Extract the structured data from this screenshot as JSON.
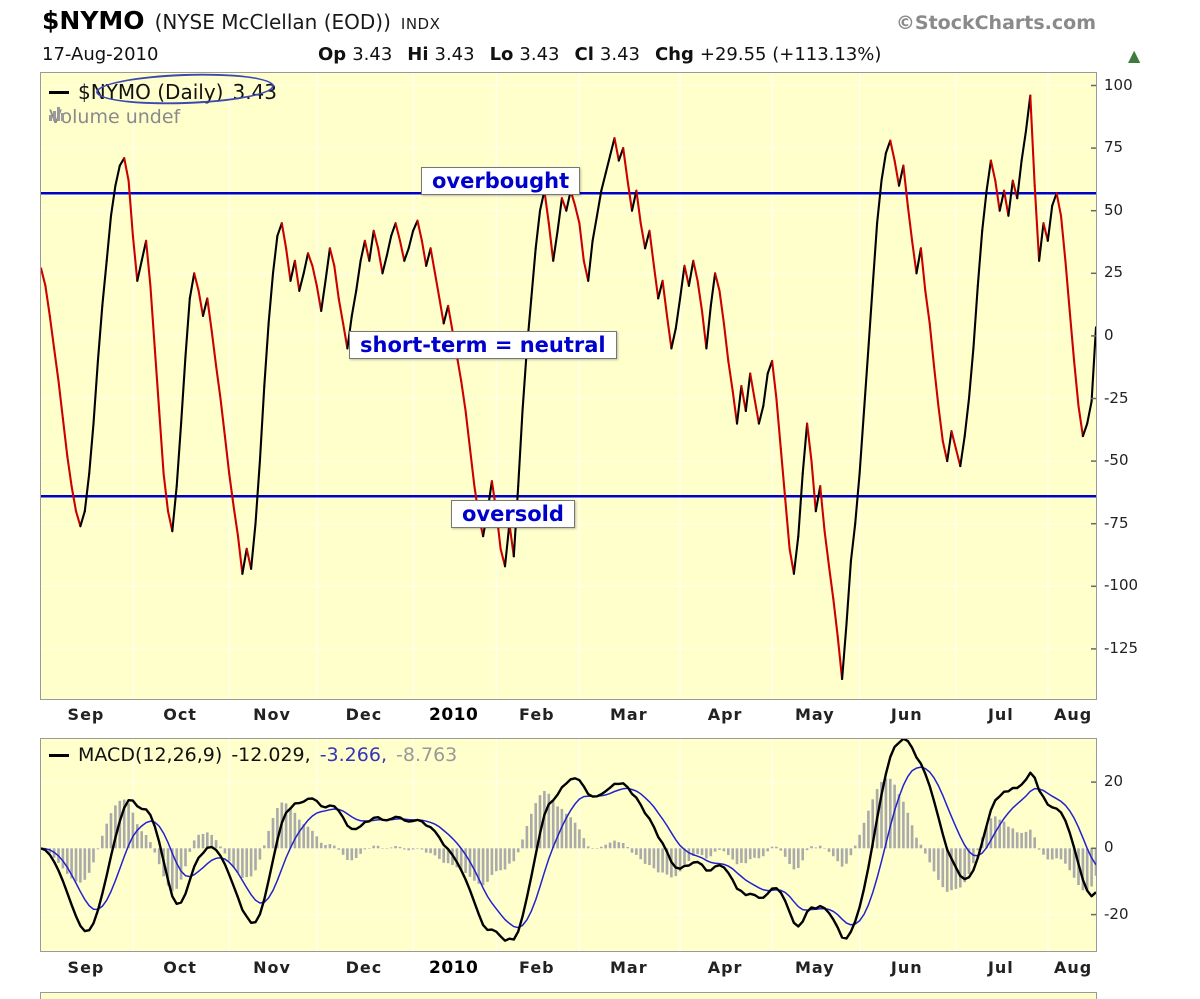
{
  "header": {
    "symbol": "$NYMO",
    "name": "(NYSE McClellan (EOD))",
    "exchange": "INDX",
    "copyright": "©StockCharts.com",
    "date": "17-Aug-2010",
    "quote": {
      "op_label": "Op",
      "op": "3.43",
      "hi_label": "Hi",
      "hi": "3.43",
      "lo_label": "Lo",
      "lo": "3.43",
      "cl_label": "Cl",
      "cl": "3.43",
      "chg_label": "Chg",
      "chg": "+29.55 (+113.13%)"
    },
    "direction_arrow": "▲"
  },
  "chart_data": [
    {
      "type": "line",
      "title": "$NYMO daily values, Sep 2009 - 17 Aug 2010",
      "legend": {
        "series_label": "$NYMO (Daily)",
        "last_value": "3.43",
        "volume_label": "Volume undef"
      },
      "annotations": {
        "overbought": "overbought",
        "neutral": "short-term = neutral",
        "oversold": "oversold"
      },
      "x_months": [
        {
          "label": "Sep",
          "days": 21
        },
        {
          "label": "Oct",
          "days": 22
        },
        {
          "label": "Nov",
          "days": 20
        },
        {
          "label": "Dec",
          "days": 22
        },
        {
          "label": "2010",
          "days": 19,
          "year": true
        },
        {
          "label": "Feb",
          "days": 19
        },
        {
          "label": "Mar",
          "days": 23
        },
        {
          "label": "Apr",
          "days": 21
        },
        {
          "label": "May",
          "days": 20
        },
        {
          "label": "Jun",
          "days": 22
        },
        {
          "label": "Jul",
          "days": 21
        },
        {
          "label": "Aug",
          "days": 12
        }
      ],
      "ylim": [
        -145,
        105
      ],
      "y_ticks": [
        100,
        75,
        50,
        25,
        0,
        -25,
        -50,
        -75,
        -100,
        -125
      ],
      "hlines": [
        {
          "value": 57,
          "name": "overbought"
        },
        {
          "value": -64,
          "name": "oversold"
        }
      ],
      "values": [
        27,
        20,
        8,
        -5,
        -18,
        -33,
        -48,
        -60,
        -70,
        -76,
        -70,
        -55,
        -35,
        -10,
        12,
        30,
        48,
        60,
        68,
        71,
        62,
        40,
        22,
        30,
        38,
        20,
        -5,
        -30,
        -55,
        -70,
        -78,
        -60,
        -35,
        -8,
        15,
        25,
        18,
        8,
        15,
        2,
        -12,
        -25,
        -40,
        -55,
        -68,
        -80,
        -95,
        -85,
        -93,
        -75,
        -50,
        -20,
        5,
        25,
        40,
        45,
        35,
        22,
        30,
        18,
        25,
        33,
        28,
        20,
        10,
        22,
        35,
        28,
        15,
        5,
        -5,
        8,
        18,
        30,
        38,
        30,
        42,
        35,
        25,
        32,
        40,
        45,
        38,
        30,
        35,
        42,
        46,
        38,
        28,
        35,
        25,
        15,
        5,
        12,
        2,
        -8,
        -18,
        -30,
        -45,
        -60,
        -72,
        -80,
        -70,
        -58,
        -70,
        -85,
        -92,
        -75,
        -88,
        -60,
        -30,
        -5,
        15,
        35,
        50,
        58,
        45,
        30,
        42,
        55,
        50,
        58,
        52,
        45,
        30,
        22,
        38,
        48,
        58,
        65,
        72,
        79,
        70,
        75,
        62,
        50,
        58,
        45,
        35,
        42,
        28,
        15,
        22,
        8,
        -5,
        3,
        15,
        28,
        20,
        30,
        22,
        10,
        -5,
        12,
        25,
        18,
        5,
        -10,
        -22,
        -35,
        -20,
        -30,
        -15,
        -25,
        -35,
        -28,
        -15,
        -10,
        -25,
        -45,
        -65,
        -85,
        -95,
        -80,
        -55,
        -35,
        -50,
        -70,
        -60,
        -78,
        -92,
        -105,
        -120,
        -137,
        -115,
        -90,
        -75,
        -55,
        -30,
        -5,
        20,
        45,
        62,
        73,
        78,
        70,
        60,
        68,
        52,
        38,
        25,
        35,
        18,
        5,
        -12,
        -28,
        -42,
        -50,
        -38,
        -45,
        -52,
        -40,
        -25,
        -5,
        20,
        42,
        58,
        70,
        62,
        50,
        58,
        48,
        62,
        55,
        70,
        82,
        96,
        60,
        30,
        45,
        38,
        52,
        57,
        48,
        30,
        10,
        -10,
        -28,
        -40,
        -35,
        -26.12,
        3.43
      ],
      "colors": {
        "up": "#000000",
        "down": "#CC0000",
        "hline": "#0000CC",
        "bg": "#FFFFCC",
        "grid": "#FFFFFF"
      }
    },
    {
      "type": "macd",
      "legend": {
        "label": "MACD(12,26,9)",
        "macd_value": "-12.029,",
        "signal_value": "-3.266,",
        "hist_value": "-8.763"
      },
      "params": [
        12,
        26,
        9
      ],
      "last": {
        "macd": -12.029,
        "signal": -3.266,
        "hist": -8.763
      },
      "ylim": [
        -31,
        33
      ],
      "y_ticks": [
        20,
        0,
        -20
      ],
      "colors": {
        "macd": "#000000",
        "signal": "#2222CC",
        "histogram": "#AAAAAA"
      }
    }
  ]
}
